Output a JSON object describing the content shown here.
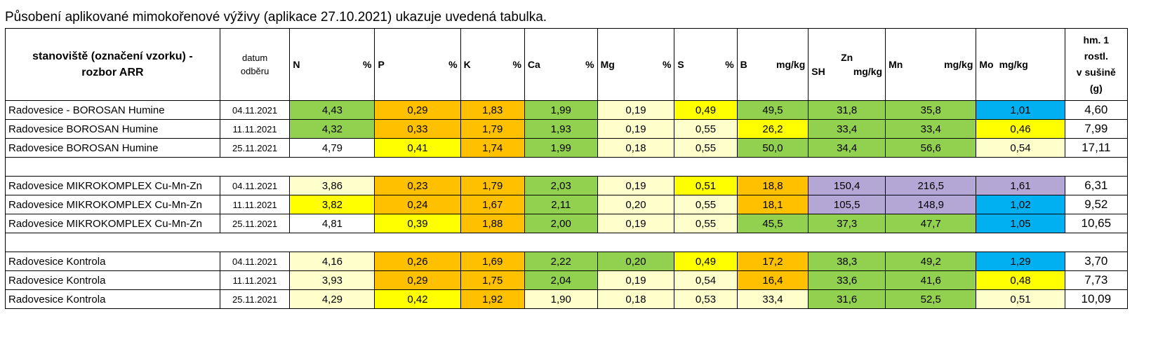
{
  "caption": "Působení aplikované mimokořenové výživy (aplikace 27.10.2021) ukazuje uvedená tabulka.",
  "colors": {
    "green": "#92d050",
    "orange": "#ffc000",
    "yellow": "#ffff00",
    "light": "#ffffcc",
    "blue": "#00b0f0",
    "lavender": "#d9e1f2",
    "purple": "#b4a7d6",
    "white": "#ffffff"
  },
  "header": {
    "site_line1": "stanoviště (označení vzorku) -",
    "site_line2": "rozbor ARR",
    "date_line1": "datum",
    "date_line2": "odběru",
    "n": {
      "el": "N",
      "unit": "%"
    },
    "p": {
      "el": "P",
      "unit": "%"
    },
    "k": {
      "el": "K",
      "unit": "%"
    },
    "ca": {
      "el": "Ca",
      "unit": "%"
    },
    "mg": {
      "el": "Mg",
      "unit": "%"
    },
    "s": {
      "el": "S",
      "unit": "%"
    },
    "b": {
      "el": "B",
      "unit": "mg/kg"
    },
    "zn": {
      "el": "Zn",
      "sub": "SH",
      "unit": "mg/kg"
    },
    "mn": {
      "el": "Mn",
      "unit": "mg/kg"
    },
    "mo": {
      "el": "Mo",
      "unit": "mg/kg"
    },
    "hm_line1": "hm. 1",
    "hm_line2": "rostl.",
    "hm_line3": "v sušině",
    "hm_line4": "(g)"
  },
  "rows": [
    {
      "name": "Radovesice - BOROSAN Humine",
      "date": "04.11.2021",
      "v": [
        "4,43",
        "0,29",
        "1,83",
        "1,99",
        "0,19",
        "0,49",
        "49,5",
        "31,8",
        "35,8",
        "1,01"
      ],
      "c": [
        "green",
        "orange",
        "orange",
        "green",
        "light",
        "yellow",
        "green",
        "green",
        "green",
        "blue"
      ],
      "w": "4,60"
    },
    {
      "name": "Radovesice BOROSAN Humine",
      "date": "11.11.2021",
      "v": [
        "4,32",
        "0,33",
        "1,79",
        "1,93",
        "0,19",
        "0,55",
        "26,2",
        "33,4",
        "33,4",
        "0,46"
      ],
      "c": [
        "green",
        "orange",
        "orange",
        "green",
        "light",
        "light",
        "yellow",
        "green",
        "green",
        "yellow"
      ],
      "w": "7,99"
    },
    {
      "name": "Radovesice BOROSAN Humine",
      "date": "25.11.2021",
      "v": [
        "4,79",
        "0,41",
        "1,74",
        "1,99",
        "0,18",
        "0,55",
        "50,0",
        "34,4",
        "56,6",
        "0,54"
      ],
      "c": [
        "lavender",
        "yellow",
        "orange",
        "green",
        "light",
        "light",
        "green",
        "green",
        "green",
        "light"
      ],
      "w": "17,11"
    },
    {
      "gap": true
    },
    {
      "name": "Radovesice MIKROKOMPLEX Cu-Mn-Zn",
      "date": "04.11.2021",
      "v": [
        "3,86",
        "0,23",
        "1,79",
        "2,03",
        "0,19",
        "0,51",
        "18,8",
        "150,4",
        "216,5",
        "1,61"
      ],
      "c": [
        "light",
        "orange",
        "orange",
        "green",
        "light",
        "yellow",
        "orange",
        "purple",
        "purple",
        "purple"
      ],
      "w": "6,31"
    },
    {
      "name": "Radovesice MIKROKOMPLEX Cu-Mn-Zn",
      "date": "11.11.2021",
      "v": [
        "3,82",
        "0,24",
        "1,67",
        "2,11",
        "0,20",
        "0,55",
        "18,1",
        "105,5",
        "148,9",
        "1,02"
      ],
      "c": [
        "yellow",
        "orange",
        "orange",
        "green",
        "light",
        "light",
        "orange",
        "purple",
        "purple",
        "blue"
      ],
      "w": "9,52"
    },
    {
      "name": "Radovesice MIKROKOMPLEX Cu-Mn-Zn",
      "date": "25.11.2021",
      "v": [
        "4,81",
        "0,39",
        "1,88",
        "2,00",
        "0,19",
        "0,55",
        "45,5",
        "37,3",
        "47,7",
        "1,05"
      ],
      "c": [
        "lavender",
        "yellow",
        "orange",
        "green",
        "light",
        "light",
        "green",
        "green",
        "green",
        "blue"
      ],
      "w": "10,65"
    },
    {
      "gap": true
    },
    {
      "name": "Radovesice Kontrola",
      "date": "04.11.2021",
      "v": [
        "4,16",
        "0,26",
        "1,69",
        "2,22",
        "0,20",
        "0,49",
        "17,2",
        "38,3",
        "49,2",
        "1,29"
      ],
      "c": [
        "light",
        "orange",
        "orange",
        "green",
        "green",
        "yellow",
        "orange",
        "green",
        "green",
        "blue"
      ],
      "w": "3,70"
    },
    {
      "name": "Radovesice Kontrola",
      "date": "11.11.2021",
      "v": [
        "3,93",
        "0,29",
        "1,75",
        "2,04",
        "0,19",
        "0,54",
        "16,4",
        "33,6",
        "41,6",
        "0,48"
      ],
      "c": [
        "light",
        "orange",
        "orange",
        "green",
        "light",
        "light",
        "orange",
        "green",
        "green",
        "yellow"
      ],
      "w": "7,73"
    },
    {
      "name": "Radovesice Kontrola",
      "date": "25.11.2021",
      "v": [
        "4,29",
        "0,42",
        "1,92",
        "1,90",
        "0,18",
        "0,53",
        "33,4",
        "31,6",
        "52,5",
        "0,51"
      ],
      "c": [
        "light",
        "yellow",
        "orange",
        "light",
        "light",
        "light",
        "light",
        "green",
        "green",
        "light"
      ],
      "w": "10,09"
    }
  ]
}
